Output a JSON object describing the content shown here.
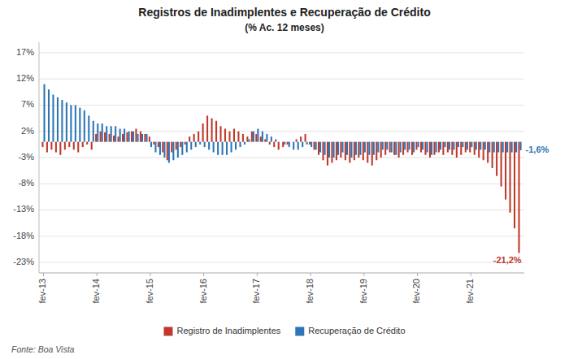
{
  "chart_data": {
    "type": "bar",
    "title": "Registros de Inadimplentes e Recuperação de Crédito",
    "subtitle": "(% Ac. 12 meses)",
    "source": "Fonte: Boa Vista",
    "categories": [
      "fev-13",
      null,
      null,
      null,
      null,
      null,
      null,
      null,
      null,
      null,
      null,
      null,
      "fev-14",
      null,
      null,
      null,
      null,
      null,
      null,
      null,
      null,
      null,
      null,
      null,
      "fev-15",
      null,
      null,
      null,
      null,
      null,
      null,
      null,
      null,
      null,
      null,
      null,
      "fev-16",
      null,
      null,
      null,
      null,
      null,
      null,
      null,
      null,
      null,
      null,
      null,
      "fev-17",
      null,
      null,
      null,
      null,
      null,
      null,
      null,
      null,
      null,
      null,
      null,
      "fev-18",
      null,
      null,
      null,
      null,
      null,
      null,
      null,
      null,
      null,
      null,
      null,
      "fev-19",
      null,
      null,
      null,
      null,
      null,
      null,
      null,
      null,
      null,
      null,
      null,
      "fev-20",
      null,
      null,
      null,
      null,
      null,
      null,
      null,
      null,
      null,
      null,
      null,
      "fev-21",
      null,
      null,
      null,
      null,
      null,
      null,
      null,
      null,
      null,
      null,
      null
    ],
    "series": [
      {
        "name": "Registro de Inadimplentes",
        "color": "#C0392B",
        "values": [
          -1.0,
          -2.0,
          -1.5,
          -2.0,
          -2.5,
          -1.5,
          -1.0,
          -1.5,
          -2.0,
          -1.0,
          -0.5,
          -1.5,
          1.5,
          2.0,
          1.8,
          1.5,
          1.2,
          1.0,
          1.5,
          1.8,
          2.0,
          2.5,
          2.0,
          1.5,
          1.0,
          -0.5,
          -1.0,
          -2.0,
          -3.5,
          -2.0,
          -1.5,
          -1.0,
          -0.5,
          1.0,
          1.5,
          2.0,
          3.5,
          5.0,
          4.5,
          4.0,
          3.0,
          2.5,
          2.0,
          2.5,
          2.0,
          1.5,
          1.0,
          2.0,
          1.5,
          1.0,
          0.5,
          -0.5,
          -1.0,
          -1.5,
          -1.0,
          -0.5,
          0.0,
          0.5,
          1.0,
          1.5,
          -0.5,
          -1.5,
          -2.5,
          -3.5,
          -4.5,
          -4.0,
          -3.5,
          -3.0,
          -3.5,
          -4.0,
          -3.5,
          -3.0,
          -3.5,
          -4.0,
          -4.5,
          -3.5,
          -3.0,
          -2.5,
          -2.0,
          -2.5,
          -3.0,
          -2.5,
          -2.0,
          -2.5,
          -1.5,
          -2.0,
          -2.5,
          -3.0,
          -2.5,
          -2.0,
          -2.5,
          -2.0,
          -2.5,
          -3.0,
          -2.5,
          -2.0,
          -2.0,
          -2.5,
          -3.0,
          -3.5,
          -4.0,
          -5.0,
          -6.5,
          -8.5,
          -11.0,
          -13.5,
          -16.5,
          -21.2
        ]
      },
      {
        "name": "Recuperação de Crédito",
        "color": "#2E75B6",
        "values": [
          11.0,
          10.0,
          9.0,
          8.5,
          8.0,
          7.5,
          7.0,
          7.0,
          6.5,
          6.0,
          5.0,
          4.0,
          3.5,
          3.5,
          3.0,
          3.0,
          3.0,
          2.5,
          2.5,
          2.0,
          2.0,
          1.5,
          1.5,
          1.5,
          -1.0,
          -2.0,
          -2.5,
          -3.0,
          -4.0,
          -3.5,
          -3.0,
          -2.5,
          -2.0,
          -1.5,
          -1.0,
          -0.5,
          -1.0,
          -1.5,
          -2.0,
          -2.5,
          -2.5,
          -2.5,
          -2.0,
          -1.5,
          -1.0,
          -0.5,
          0.5,
          2.0,
          2.5,
          2.0,
          1.5,
          1.0,
          0.5,
          0.0,
          -0.5,
          -1.0,
          -1.5,
          -1.5,
          -1.0,
          -0.5,
          -1.0,
          -1.5,
          -2.0,
          -2.5,
          -3.0,
          -3.0,
          -2.5,
          -2.0,
          -2.5,
          -3.0,
          -2.5,
          -2.5,
          -2.0,
          -2.5,
          -2.5,
          -2.0,
          -1.5,
          -1.5,
          -2.0,
          -2.5,
          -2.0,
          -1.5,
          -1.5,
          -2.0,
          -1.0,
          -1.5,
          -2.0,
          -2.5,
          -2.0,
          -1.5,
          -1.0,
          -1.5,
          -1.5,
          -1.0,
          -1.0,
          -1.5,
          -1.0,
          -1.5,
          -1.5,
          -1.5,
          -2.0,
          -2.0,
          -2.0,
          -2.0,
          -2.0,
          -2.0,
          -2.0,
          -1.6
        ]
      }
    ],
    "annotations": [
      {
        "text": "-21,2%",
        "color": "#C0392B"
      },
      {
        "text": "-1,6%",
        "color": "#2E75B6"
      }
    ],
    "ylim": [
      -25,
      19
    ],
    "yticks": [
      {
        "value": -23,
        "label": "-23%"
      },
      {
        "value": -18,
        "label": "-18%"
      },
      {
        "value": -13,
        "label": "-13%"
      },
      {
        "value": -8,
        "label": "-8%"
      },
      {
        "value": -3,
        "label": "-3%"
      },
      {
        "value": 2,
        "label": "2%"
      },
      {
        "value": 7,
        "label": "7%"
      },
      {
        "value": 12,
        "label": "12%"
      },
      {
        "value": 17,
        "label": "17%"
      }
    ],
    "grid": true,
    "legend": "bottom"
  }
}
